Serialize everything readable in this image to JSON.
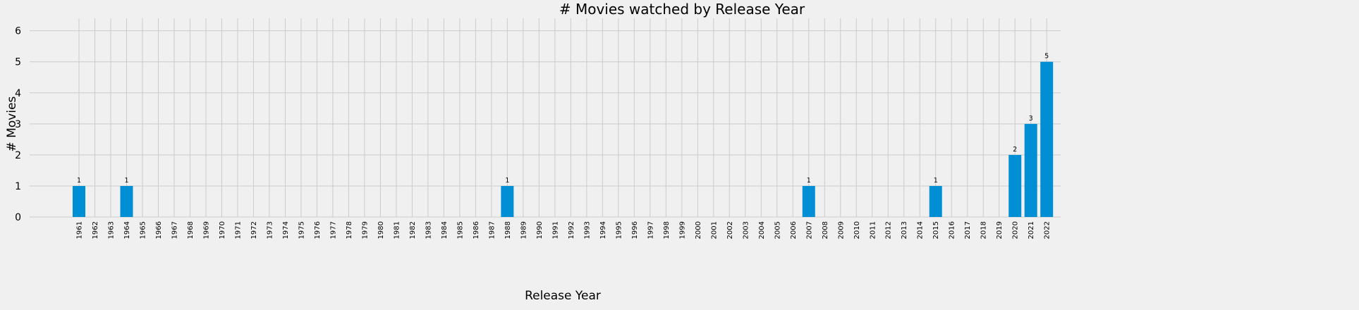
{
  "chart_data": {
    "type": "bar",
    "title": "# Movies watched by Release Year",
    "xlabel": "Release Year",
    "ylabel": "# Movies",
    "ylim": [
      0,
      6.4
    ],
    "yticks": [
      "0",
      "1",
      "2",
      "3",
      "4",
      "5",
      "6"
    ],
    "grid": true,
    "colors": {
      "bar": "#008fd5",
      "grid": "#cbcbcb",
      "background": "#f0f0f0"
    },
    "categories": [
      "1961",
      "1962",
      "1963",
      "1964",
      "1965",
      "1966",
      "1967",
      "1968",
      "1969",
      "1970",
      "1971",
      "1972",
      "1973",
      "1974",
      "1975",
      "1976",
      "1977",
      "1978",
      "1979",
      "1980",
      "1981",
      "1982",
      "1983",
      "1984",
      "1985",
      "1986",
      "1987",
      "1988",
      "1989",
      "1990",
      "1991",
      "1992",
      "1993",
      "1994",
      "1995",
      "1996",
      "1997",
      "1998",
      "1999",
      "2000",
      "2001",
      "2002",
      "2003",
      "2004",
      "2005",
      "2006",
      "2007",
      "2008",
      "2009",
      "2010",
      "2011",
      "2012",
      "2013",
      "2014",
      "2015",
      "2016",
      "2017",
      "2018",
      "2019",
      "2020",
      "2021",
      "2022"
    ],
    "values": [
      1,
      0,
      0,
      1,
      0,
      0,
      0,
      0,
      0,
      0,
      0,
      0,
      0,
      0,
      0,
      0,
      0,
      0,
      0,
      0,
      0,
      0,
      0,
      0,
      0,
      0,
      0,
      1,
      0,
      0,
      0,
      0,
      0,
      0,
      0,
      0,
      0,
      0,
      0,
      0,
      0,
      0,
      0,
      0,
      0,
      0,
      1,
      0,
      0,
      0,
      0,
      0,
      0,
      0,
      1,
      0,
      0,
      0,
      0,
      2,
      3,
      5
    ]
  }
}
